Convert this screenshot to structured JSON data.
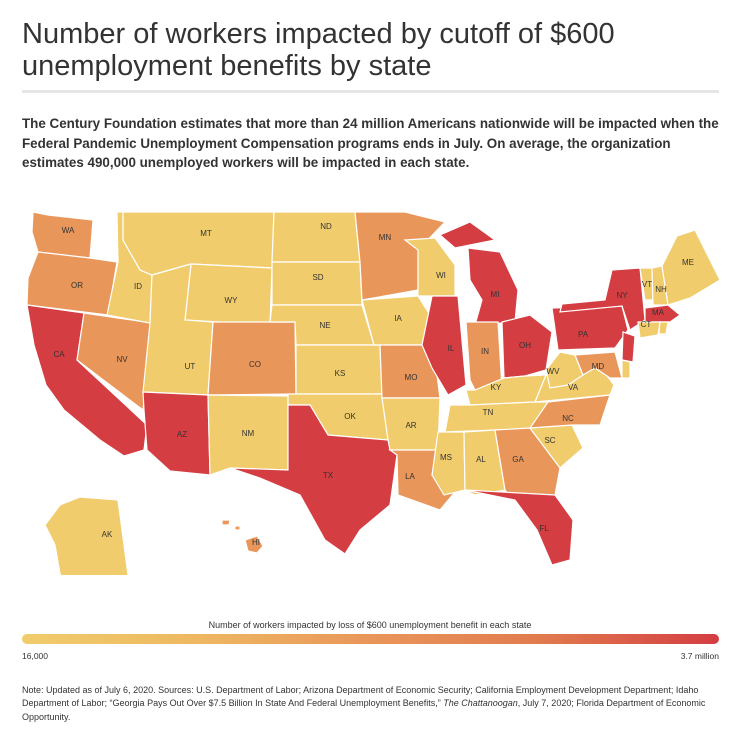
{
  "title": "Number of workers impacted by cutoff of $600 unemployment benefits by state",
  "subtitle": "The Century Foundation estimates that more than 24 million Americans nationwide will be impacted when the Federal Pandemic Unemployment Compensation programs ends in July. On average, the organization estimates 490,000 unemployed workers will be impacted in each state.",
  "colors": {
    "low": "#f0cc6c",
    "mid": "#e9965a",
    "high": "#d43d42",
    "legend_gradient": [
      "#f0cc6c",
      "#eeb862",
      "#e9965a",
      "#e07a4e",
      "#d43d42"
    ]
  },
  "legend": {
    "title": "Number of workers impacted by loss of $600 unemployment benefit in each state",
    "min_label": "16,000",
    "max_label": "3.7 million"
  },
  "states": [
    {
      "abbr": "WA",
      "level": "mid"
    },
    {
      "abbr": "OR",
      "level": "mid"
    },
    {
      "abbr": "CA",
      "level": "high"
    },
    {
      "abbr": "NV",
      "level": "mid"
    },
    {
      "abbr": "ID",
      "level": "low"
    },
    {
      "abbr": "MT",
      "level": "low"
    },
    {
      "abbr": "WY",
      "level": "low"
    },
    {
      "abbr": "UT",
      "level": "low"
    },
    {
      "abbr": "AZ",
      "level": "high"
    },
    {
      "abbr": "CO",
      "level": "mid"
    },
    {
      "abbr": "NM",
      "level": "low"
    },
    {
      "abbr": "ND",
      "level": "low"
    },
    {
      "abbr": "SD",
      "level": "low"
    },
    {
      "abbr": "NE",
      "level": "low"
    },
    {
      "abbr": "KS",
      "level": "low"
    },
    {
      "abbr": "OK",
      "level": "low"
    },
    {
      "abbr": "TX",
      "level": "high"
    },
    {
      "abbr": "MN",
      "level": "mid"
    },
    {
      "abbr": "IA",
      "level": "low"
    },
    {
      "abbr": "MO",
      "level": "mid"
    },
    {
      "abbr": "AR",
      "level": "low"
    },
    {
      "abbr": "LA",
      "level": "mid"
    },
    {
      "abbr": "WI",
      "level": "low"
    },
    {
      "abbr": "IL",
      "level": "high"
    },
    {
      "abbr": "MI",
      "level": "high"
    },
    {
      "abbr": "IN",
      "level": "mid"
    },
    {
      "abbr": "OH",
      "level": "high"
    },
    {
      "abbr": "KY",
      "level": "low"
    },
    {
      "abbr": "TN",
      "level": "low"
    },
    {
      "abbr": "MS",
      "level": "low"
    },
    {
      "abbr": "AL",
      "level": "low"
    },
    {
      "abbr": "GA",
      "level": "mid"
    },
    {
      "abbr": "FL",
      "level": "high"
    },
    {
      "abbr": "SC",
      "level": "low"
    },
    {
      "abbr": "NC",
      "level": "mid"
    },
    {
      "abbr": "VA",
      "level": "low"
    },
    {
      "abbr": "WV",
      "level": "low"
    },
    {
      "abbr": "PA",
      "level": "high"
    },
    {
      "abbr": "NY",
      "level": "high"
    },
    {
      "abbr": "VT",
      "level": "low"
    },
    {
      "abbr": "NH",
      "level": "low"
    },
    {
      "abbr": "ME",
      "level": "low"
    },
    {
      "abbr": "MA",
      "level": "high"
    },
    {
      "abbr": "CT",
      "level": "low"
    },
    {
      "abbr": "RI",
      "level": "low"
    },
    {
      "abbr": "NJ",
      "level": "high"
    },
    {
      "abbr": "DE",
      "level": "low"
    },
    {
      "abbr": "MD",
      "level": "mid"
    },
    {
      "abbr": "AK",
      "level": "low"
    },
    {
      "abbr": "HI",
      "level": "mid"
    }
  ],
  "note": {
    "part1": "Note: Updated as of July 6, 2020. Sources: U.S. Department of Labor; Arizona Department of Economic Security; California Employment Development Department; Idaho Department of Labor; “Georgia Pays Out Over $7.5 Billion In State And Federal Unemployment Benefits,”",
    "source_italic": "The Chattanoogan",
    "part2": ", July 7, 2020; Florida Department of Economic Opportunity."
  }
}
